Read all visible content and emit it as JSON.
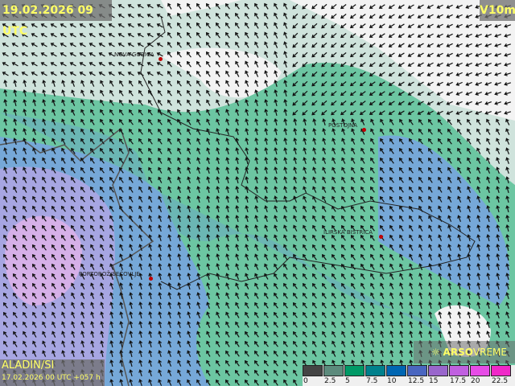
{
  "header": {
    "datetime": "19.02.2026 09 UTC",
    "variable": "V10m"
  },
  "footer": {
    "model": "ALADIN/SI",
    "run": "17.02.2026 00 UTC +057 h",
    "brand_bold": "ARSO",
    "brand_light": "VREME",
    "brand_icon": "sun-icon"
  },
  "cities": [
    {
      "name": "NOVA GORICA"
    },
    {
      "name": "POSTOJNA"
    },
    {
      "name": "ILIRSKA BISTRICA"
    },
    {
      "name": "PORTOROŽ/SEČOVLJE"
    }
  ],
  "legend": {
    "ticks": [
      "0",
      "2.5",
      "5",
      "7.5",
      "10",
      "12.5",
      "15",
      "17.5",
      "20",
      "22.5"
    ],
    "colors": [
      "#444444",
      "#5c8a7c",
      "#009966",
      "#00808c",
      "#0066b2",
      "#4a66c0",
      "#9966cc",
      "#c060e0",
      "#e64ce6",
      "#f028c8"
    ]
  },
  "fill_colors": {
    "calm": "#f3f3f3",
    "pale": "#cfe3dc",
    "green": "#6cc6a2",
    "teal": "#6bb6b4",
    "blue": "#76a8d8",
    "purple": "#a7a6e2",
    "pink": "#d6b0e8"
  }
}
